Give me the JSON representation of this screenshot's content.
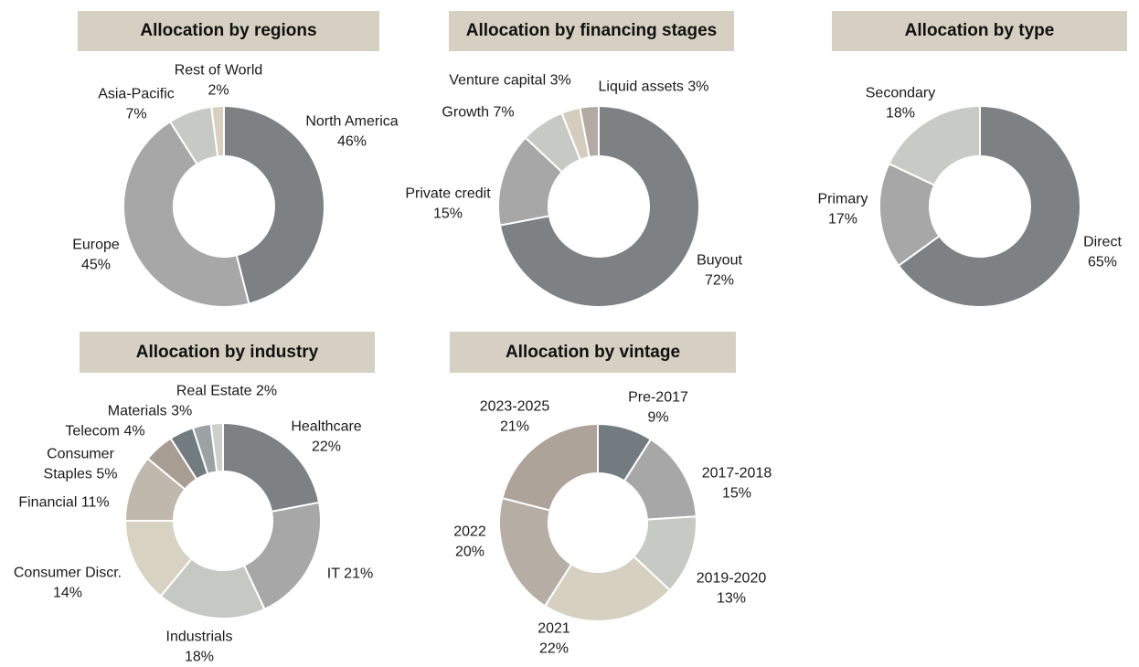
{
  "page_background": "#ffffff",
  "styles": {
    "title_bar_bg": "#d5d0c1",
    "title_text_color": "#111111",
    "label_text_color": "#1a1a1a",
    "slice_separator_color": "#ffffff"
  },
  "chart_data": [
    {
      "id": "regions",
      "type": "donut",
      "title": "Allocation by regions",
      "start_angle": "top",
      "direction": "clockwise",
      "hole_ratio": 0.5,
      "slices": [
        {
          "label": "North America",
          "value_pct": 46,
          "display": [
            "North America",
            "46%"
          ],
          "color": "#7d8184"
        },
        {
          "label": "Europe",
          "value_pct": 45,
          "display": [
            "Europe",
            "45%"
          ],
          "color": "#a6a7a6"
        },
        {
          "label": "Asia-Pacific",
          "value_pct": 7,
          "display": [
            "Asia-Pacific",
            "7%"
          ],
          "color": "#c7c9c4"
        },
        {
          "label": "Rest of World",
          "value_pct": 2,
          "display": [
            "Rest of World",
            "2%"
          ],
          "color": "#d8cfbe"
        }
      ]
    },
    {
      "id": "financing-stages",
      "type": "donut",
      "title": "Allocation by financing stages",
      "start_angle": "top",
      "direction": "clockwise",
      "hole_ratio": 0.5,
      "slices": [
        {
          "label": "Buyout",
          "value_pct": 72,
          "display": [
            "Buyout",
            "72%"
          ],
          "color": "#7d8184"
        },
        {
          "label": "Private credit",
          "value_pct": 15,
          "display": [
            "Private credit",
            "15%"
          ],
          "color": "#a6a7a6"
        },
        {
          "label": "Growth",
          "value_pct": 7,
          "display": [
            "Growth 7%"
          ],
          "color": "#c7c9c4"
        },
        {
          "label": "Venture capital",
          "value_pct": 3,
          "display": [
            "Venture capital 3%"
          ],
          "color": "#d4cdbe"
        },
        {
          "label": "Liquid assets",
          "value_pct": 3,
          "display": [
            "Liquid assets 3%"
          ],
          "color": "#b3aaa4"
        }
      ]
    },
    {
      "id": "type",
      "type": "donut",
      "title": "Allocation by type",
      "start_angle": "top",
      "direction": "clockwise",
      "hole_ratio": 0.5,
      "slices": [
        {
          "label": "Direct",
          "value_pct": 65,
          "display": [
            "Direct",
            "65%"
          ],
          "color": "#7d8184"
        },
        {
          "label": "Primary",
          "value_pct": 17,
          "display": [
            "Primary",
            "17%"
          ],
          "color": "#a6a7a6"
        },
        {
          "label": "Secondary",
          "value_pct": 18,
          "display": [
            "Secondary",
            "18%"
          ],
          "color": "#c8cac5"
        }
      ]
    },
    {
      "id": "industry",
      "type": "donut",
      "title": "Allocation by industry",
      "start_angle": "top",
      "direction": "clockwise",
      "hole_ratio": 0.5,
      "slices": [
        {
          "label": "Healthcare",
          "value_pct": 22,
          "display": [
            "Healthcare",
            "22%"
          ],
          "color": "#7d8184"
        },
        {
          "label": "IT",
          "value_pct": 21,
          "display": [
            "IT 21%"
          ],
          "color": "#a6a7a6"
        },
        {
          "label": "Industrials",
          "value_pct": 18,
          "display": [
            "Industrials",
            "18%"
          ],
          "color": "#c6c8c3"
        },
        {
          "label": "Consumer Discr.",
          "value_pct": 14,
          "display": [
            "Consumer Discr.",
            "14%"
          ],
          "color": "#d8d2c2"
        },
        {
          "label": "Financial",
          "value_pct": 11,
          "display": [
            "Financial 11%"
          ],
          "color": "#bfb8ac"
        },
        {
          "label": "Consumer Staples",
          "value_pct": 5,
          "display": [
            "Consumer",
            "Staples 5%"
          ],
          "color": "#a89d92"
        },
        {
          "label": "Telecom",
          "value_pct": 4,
          "display": [
            "Telecom 4%"
          ],
          "color": "#727b80"
        },
        {
          "label": "Materials",
          "value_pct": 3,
          "display": [
            "Materials 3%"
          ],
          "color": "#9ca1a4"
        },
        {
          "label": "Real Estate",
          "value_pct": 2,
          "display": [
            "Real Estate 2%"
          ],
          "color": "#cdcfca"
        }
      ]
    },
    {
      "id": "vintage",
      "type": "donut",
      "title": "Allocation by vintage",
      "start_angle": "top",
      "direction": "clockwise",
      "hole_ratio": 0.5,
      "slices": [
        {
          "label": "Pre-2017",
          "value_pct": 9,
          "display": [
            "Pre-2017",
            "9%"
          ],
          "color": "#727b80"
        },
        {
          "label": "2017-2018",
          "value_pct": 15,
          "display": [
            "2017-2018",
            "15%"
          ],
          "color": "#a6a7a6"
        },
        {
          "label": "2019-2020",
          "value_pct": 13,
          "display": [
            "2019-2020",
            "13%"
          ],
          "color": "#c7c9c4"
        },
        {
          "label": "2021",
          "value_pct": 22,
          "display": [
            "2021",
            "22%"
          ],
          "color": "#d6d0c1"
        },
        {
          "label": "2022",
          "value_pct": 20,
          "display": [
            "2022",
            "20%"
          ],
          "color": "#b6aea5"
        },
        {
          "label": "2023-2025",
          "value_pct": 21,
          "display": [
            "2023-2025",
            "21%"
          ],
          "color": "#ada399"
        }
      ]
    }
  ]
}
